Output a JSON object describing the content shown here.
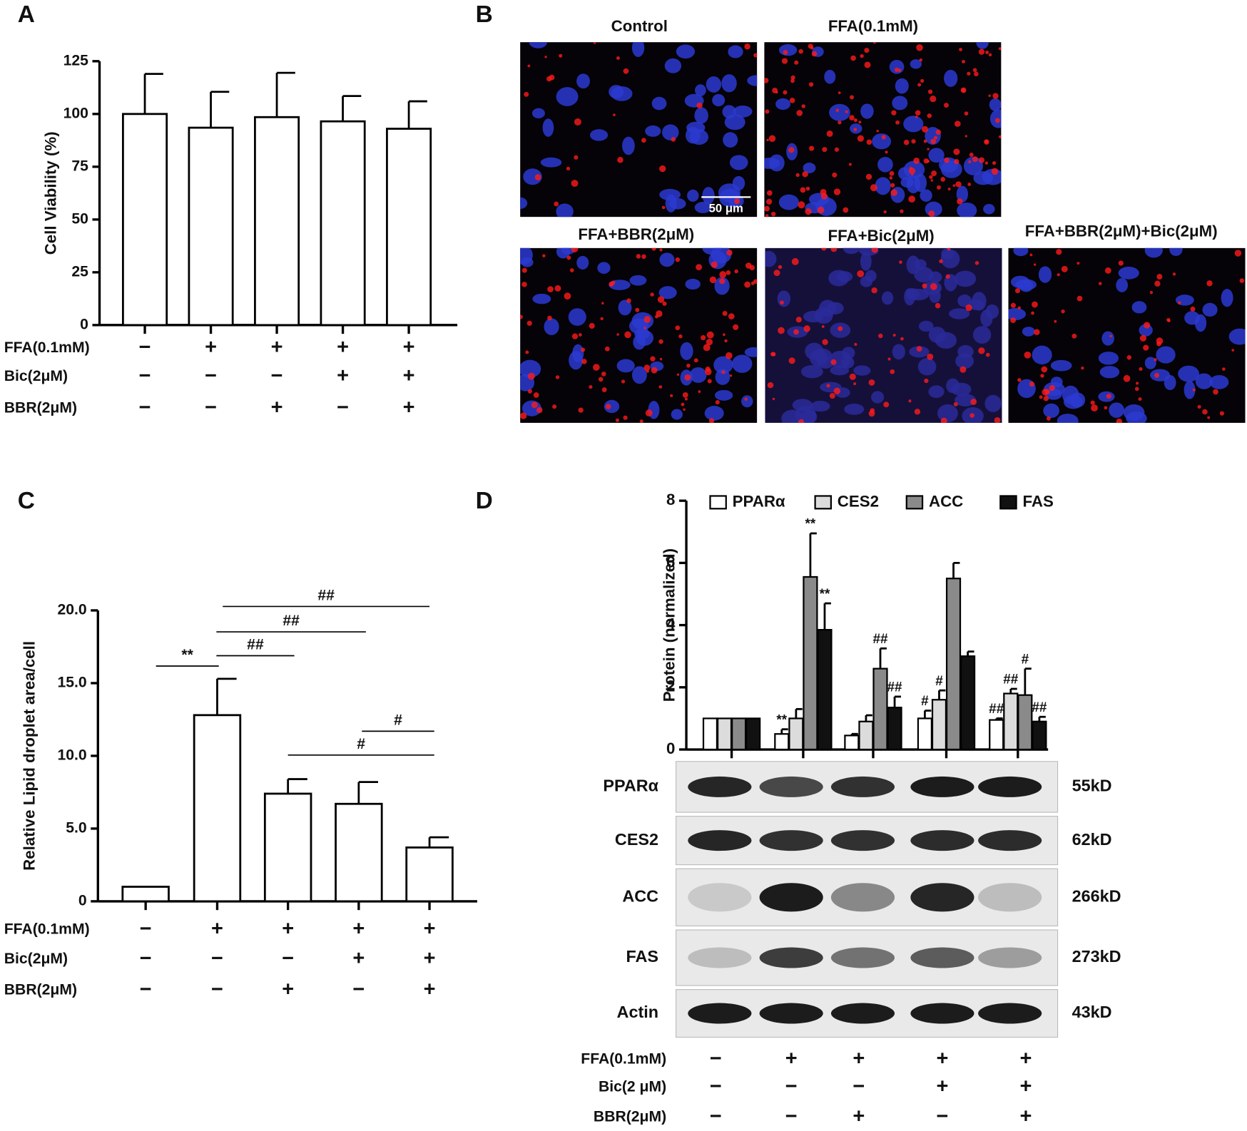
{
  "panels": [
    "A",
    "B",
    "C",
    "D"
  ],
  "images": {
    "titles": [
      "Control",
      "FFA(0.1mM)",
      "FFA+BBR(2μM)",
      "FFA+Bic(2μM)",
      "FFA+BBR(2μM)+Bic(2μM)"
    ],
    "scale_bar": "50 μm"
  },
  "blot": {
    "proteins": [
      "PPARα",
      "CES2",
      "ACC",
      "FAS",
      "Actin"
    ],
    "sizes": [
      "55kD",
      "62kD",
      "266kD",
      "273kD",
      "43kD"
    ]
  },
  "chart_data": [
    {
      "type": "bar",
      "ylabel": "Cell Viability (%)",
      "color": "#ffffff",
      "values": [
        100,
        93.5,
        98.5,
        96.5,
        93
      ],
      "errors": [
        19,
        17,
        21,
        12,
        13
      ],
      "ylim": [
        0,
        125
      ],
      "yticks": [
        0,
        25,
        50,
        75,
        100,
        125
      ],
      "treatments": [
        {
          "label": "FFA(0.1mM)",
          "signs": [
            "−",
            "+",
            "+",
            "+",
            "+"
          ]
        },
        {
          "label": "Bic(2μM)",
          "signs": [
            "−",
            "−",
            "−",
            "+",
            "+"
          ]
        },
        {
          "label": "BBR(2μM)",
          "signs": [
            "−",
            "−",
            "+",
            "−",
            "+"
          ]
        }
      ]
    },
    {
      "type": "bar",
      "ylabel": "Relative Lipid droplet area/cell",
      "color": "#ffffff",
      "values": [
        1,
        12.8,
        7.4,
        6.7,
        3.7
      ],
      "errors": [
        null,
        2.5,
        1.0,
        1.5,
        0.7
      ],
      "ylim": [
        0,
        20
      ],
      "yticks": [
        0,
        {
          "value": 5,
          "label": "5.0"
        },
        {
          "value": 10,
          "label": "10.0"
        },
        {
          "value": 15,
          "label": "15.0"
        },
        {
          "value": 20,
          "label": "20.0"
        }
      ],
      "annotations": [
        {
          "text": "**"
        },
        {
          "text": "##"
        },
        {
          "text": "##"
        },
        {
          "text": "##"
        },
        {
          "text": "#"
        },
        {
          "text": "#"
        }
      ],
      "treatments": [
        {
          "label": "FFA(0.1mM)",
          "signs": [
            "−",
            "+",
            "+",
            "+",
            "+"
          ]
        },
        {
          "label": "Bic(2μM)",
          "signs": [
            "−",
            "−",
            "−",
            "+",
            "+"
          ]
        },
        {
          "label": "BBR(2μM)",
          "signs": [
            "−",
            "−",
            "+",
            "−",
            "+"
          ]
        }
      ]
    },
    {
      "type": "grouped_bar",
      "ylabel": "Protein (normalized)",
      "ylim": [
        0,
        8
      ],
      "yticks": [
        0,
        2,
        4,
        6,
        8
      ],
      "legend": "top",
      "series": [
        {
          "name": "PPARα",
          "color": "#ffffff",
          "values": [
            1,
            0.5,
            0.45,
            1.0,
            0.95
          ],
          "errors": [
            null,
            0.15,
            0.05,
            0.25,
            0.05
          ],
          "sig": [
            null,
            "**",
            null,
            "#",
            "##"
          ]
        },
        {
          "name": "CES2",
          "color": "#dcdcdc",
          "values": [
            1,
            1.0,
            0.9,
            1.6,
            1.8
          ],
          "errors": [
            null,
            0.3,
            0.2,
            0.3,
            0.15
          ],
          "sig": [
            null,
            null,
            null,
            "#",
            "##"
          ]
        },
        {
          "name": "ACC",
          "color": "#8a8a8a",
          "values": [
            1,
            5.55,
            2.6,
            5.5,
            1.75
          ],
          "errors": [
            null,
            1.4,
            0.65,
            0.5,
            0.85
          ],
          "sig": [
            null,
            "**",
            "##",
            null,
            "#"
          ]
        },
        {
          "name": "FAS",
          "color": "#111111",
          "values": [
            1,
            3.85,
            1.35,
            3.0,
            0.9
          ],
          "errors": [
            null,
            0.85,
            0.35,
            0.15,
            0.15
          ],
          "sig": [
            null,
            "**",
            "##",
            null,
            "##"
          ]
        }
      ],
      "treatments": [
        {
          "label": "FFA(0.1mM)",
          "signs": [
            "−",
            "+",
            "+",
            "+",
            "+"
          ]
        },
        {
          "label": "Bic(2 μM)",
          "signs": [
            "−",
            "−",
            "−",
            "+",
            "+"
          ]
        },
        {
          "label": "BBR(2μM)",
          "signs": [
            "−",
            "−",
            "+",
            "−",
            "+"
          ]
        }
      ]
    }
  ]
}
